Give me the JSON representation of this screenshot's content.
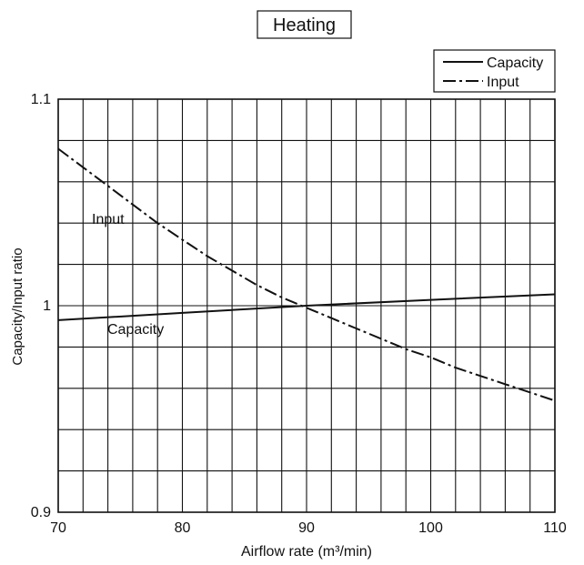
{
  "chart_data": {
    "type": "line",
    "title": "Heating",
    "xlabel": "Airflow rate (m³/min)",
    "ylabel": "Capacity/Input ratio",
    "xlim": [
      70,
      110
    ],
    "ylim": [
      0.9,
      1.1
    ],
    "xticks": [
      {
        "value": 70,
        "label": "70"
      },
      {
        "value": 80,
        "label": "80"
      },
      {
        "value": 90,
        "label": "90"
      },
      {
        "value": 100,
        "label": "100"
      },
      {
        "value": 110,
        "label": "110"
      }
    ],
    "yticks": [
      {
        "value": 0.9,
        "label": "0.9"
      },
      {
        "value": 1.0,
        "label": "1"
      },
      {
        "value": 1.1,
        "label": "1.1"
      }
    ],
    "grid": true,
    "x_grid_step": 2,
    "y_grid_step": 0.02,
    "legend": "top-right",
    "series": [
      {
        "name": "Capacity",
        "line_style": "solid",
        "x": [
          70,
          80,
          90,
          100,
          110
        ],
        "values": [
          0.993,
          0.9965,
          1.0,
          1.0028,
          1.0055
        ]
      },
      {
        "name": "Input",
        "line_style": "dash-dot",
        "x": [
          70,
          72,
          74,
          76,
          78,
          80,
          82,
          84,
          86,
          88,
          90,
          92,
          94,
          96,
          98,
          100,
          102,
          104,
          106,
          108,
          110
        ],
        "values": [
          1.076,
          1.067,
          1.058,
          1.049,
          1.04,
          1.032,
          1.024,
          1.017,
          1.01,
          1.004,
          0.999,
          0.994,
          0.989,
          0.984,
          0.979,
          0.975,
          0.97,
          0.966,
          0.962,
          0.958,
          0.954
        ]
      }
    ],
    "annotations": [
      {
        "text": "Input",
        "series": "Input"
      },
      {
        "text": "Capacity",
        "series": "Capacity"
      }
    ]
  }
}
